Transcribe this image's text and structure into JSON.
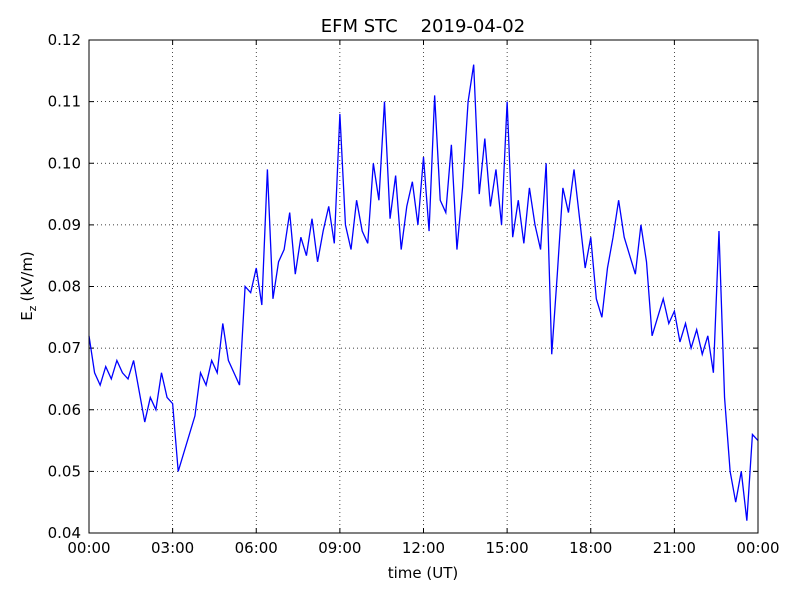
{
  "chart_data": {
    "type": "line",
    "title": "EFM STC    2019-04-02",
    "xlabel": "time (UT)",
    "ylabel": {
      "text": "E",
      "subscript": "z",
      "unit": "(kV/m)"
    },
    "x": [
      0.0,
      0.2,
      0.4,
      0.6,
      0.8,
      1.0,
      1.2,
      1.4,
      1.6,
      1.8,
      2.0,
      2.2,
      2.4,
      2.6,
      2.8,
      3.0,
      3.2,
      3.4,
      3.6,
      3.8,
      4.0,
      4.2,
      4.4,
      4.6,
      4.8,
      5.0,
      5.2,
      5.4,
      5.6,
      5.8,
      6.0,
      6.2,
      6.4,
      6.6,
      6.8,
      7.0,
      7.2,
      7.4,
      7.6,
      7.8,
      8.0,
      8.2,
      8.4,
      8.6,
      8.8,
      9.0,
      9.2,
      9.4,
      9.6,
      9.8,
      10.0,
      10.2,
      10.4,
      10.6,
      10.8,
      11.0,
      11.2,
      11.4,
      11.6,
      11.8,
      12.0,
      12.2,
      12.4,
      12.6,
      12.8,
      13.0,
      13.2,
      13.4,
      13.6,
      13.8,
      14.0,
      14.2,
      14.4,
      14.6,
      14.8,
      15.0,
      15.2,
      15.4,
      15.6,
      15.8,
      16.0,
      16.2,
      16.4,
      16.6,
      16.8,
      17.0,
      17.2,
      17.4,
      17.6,
      17.8,
      18.0,
      18.2,
      18.4,
      18.6,
      18.8,
      19.0,
      19.2,
      19.4,
      19.6,
      19.8,
      20.0,
      20.2,
      20.4,
      20.6,
      20.8,
      21.0,
      21.2,
      21.4,
      21.6,
      21.8,
      22.0,
      22.2,
      22.4,
      22.6,
      22.8,
      23.0,
      23.2,
      23.4,
      23.6,
      23.8,
      24.0
    ],
    "values": [
      0.072,
      0.066,
      0.064,
      0.067,
      0.065,
      0.068,
      0.066,
      0.065,
      0.068,
      0.063,
      0.058,
      0.062,
      0.06,
      0.066,
      0.062,
      0.061,
      0.05,
      0.053,
      0.056,
      0.059,
      0.066,
      0.064,
      0.068,
      0.066,
      0.074,
      0.068,
      0.066,
      0.064,
      0.08,
      0.079,
      0.083,
      0.077,
      0.099,
      0.078,
      0.084,
      0.086,
      0.092,
      0.082,
      0.088,
      0.085,
      0.091,
      0.084,
      0.089,
      0.093,
      0.087,
      0.108,
      0.09,
      0.086,
      0.094,
      0.089,
      0.087,
      0.1,
      0.094,
      0.11,
      0.091,
      0.098,
      0.086,
      0.093,
      0.097,
      0.09,
      0.101,
      0.089,
      0.111,
      0.094,
      0.092,
      0.103,
      0.086,
      0.096,
      0.11,
      0.116,
      0.095,
      0.104,
      0.093,
      0.099,
      0.09,
      0.11,
      0.088,
      0.094,
      0.087,
      0.096,
      0.09,
      0.086,
      0.1,
      0.069,
      0.082,
      0.096,
      0.092,
      0.099,
      0.091,
      0.083,
      0.088,
      0.078,
      0.075,
      0.083,
      0.088,
      0.094,
      0.088,
      0.085,
      0.082,
      0.09,
      0.084,
      0.072,
      0.075,
      0.078,
      0.074,
      0.076,
      0.071,
      0.074,
      0.07,
      0.073,
      0.069,
      0.072,
      0.066,
      0.089,
      0.062,
      0.05,
      0.045,
      0.05,
      0.042,
      0.056,
      0.055
    ],
    "color": "#0000ff",
    "xlim": [
      0,
      24
    ],
    "xticks": [
      {
        "value": 0,
        "label": "00:00"
      },
      {
        "value": 3,
        "label": "03:00"
      },
      {
        "value": 6,
        "label": "06:00"
      },
      {
        "value": 9,
        "label": "09:00"
      },
      {
        "value": 12,
        "label": "12:00"
      },
      {
        "value": 15,
        "label": "15:00"
      },
      {
        "value": 18,
        "label": "18:00"
      },
      {
        "value": 21,
        "label": "21:00"
      },
      {
        "value": 24,
        "label": "00:00"
      }
    ],
    "ylim": [
      0.04,
      0.12
    ],
    "yticks": [
      0.04,
      0.05,
      0.06,
      0.07,
      0.08,
      0.09,
      {
        "value": 0.1,
        "label": "0.10"
      },
      0.11,
      0.12
    ],
    "grid": true
  }
}
